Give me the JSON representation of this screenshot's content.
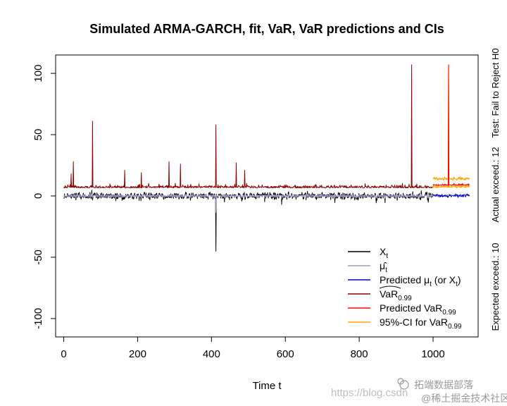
{
  "chart_data": {
    "type": "line",
    "title": "Simulated ARMA-GARCH, fit, VaR, VaR predictions and CIs",
    "xlabel": "Time t",
    "ylabel": "",
    "xlim": [
      -22,
      1122
    ],
    "ylim": [
      -115,
      115
    ],
    "xticks": [
      0,
      200,
      400,
      600,
      800,
      1000
    ],
    "yticks": [
      -100,
      -50,
      0,
      50,
      100
    ],
    "n_fit": 1000,
    "n_pred": 100,
    "legend_position": "bottom-right",
    "series": [
      {
        "key": "xt",
        "name": "X",
        "sub": "t",
        "color": "#000000"
      },
      {
        "key": "mu",
        "name": "μ̂",
        "sub": "t",
        "color": "#9999cc"
      },
      {
        "key": "pred_mu",
        "name": "Predicted μ",
        "sub": "t",
        "suffix": " (or X",
        "suffix_sub": "t",
        "suffix_end": ")",
        "color": "#0000cc"
      },
      {
        "key": "var",
        "name": "VaR",
        "sub": "0.99",
        "hat": true,
        "color": "#8b0000"
      },
      {
        "key": "pred_var",
        "name": "Predicted VaR",
        "sub": "0.99",
        "color": "#ff0000"
      },
      {
        "key": "ci",
        "name": "95%-CI for VaR",
        "sub": "0.99",
        "color": "#ffa500"
      }
    ],
    "var_spikes": [
      {
        "t": 20,
        "v": 18
      },
      {
        "t": 26,
        "v": 28
      },
      {
        "t": 78,
        "v": 61
      },
      {
        "t": 165,
        "v": 21
      },
      {
        "t": 210,
        "v": 19
      },
      {
        "t": 285,
        "v": 28
      },
      {
        "t": 316,
        "v": 26
      },
      {
        "t": 412,
        "v": 58
      },
      {
        "t": 467,
        "v": 27
      },
      {
        "t": 490,
        "v": 21
      },
      {
        "t": 942,
        "v": 107
      }
    ],
    "xt_spikes": [
      {
        "t": 412,
        "v": -45
      }
    ],
    "pred_spike": {
      "t": 1042,
      "v": 107
    }
  },
  "side_text": {
    "test": "Test: Fail to Reject H0",
    "actual": "Actual exceed.: 12",
    "expected": "Expected exceed.: 10"
  },
  "watermark": {
    "url": "https://blog.csdn",
    "brand": "拓端数据部落",
    "community": "@稀土掘金技术社区"
  }
}
